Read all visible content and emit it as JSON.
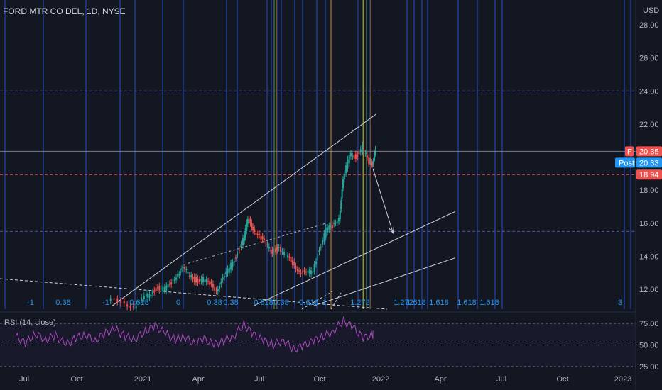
{
  "header": {
    "title": "FORD MTR CO DEL, 1D, NYSE",
    "currency": "USD"
  },
  "rsi": {
    "label": "RSI (14, close)",
    "levels": [
      75,
      50,
      25
    ],
    "level_labels": [
      "75.00",
      "50.00",
      "25.00"
    ]
  },
  "price_tags": {
    "last": {
      "symbol": "F",
      "value": "20.35",
      "color": "#ef5350"
    },
    "post": {
      "label": "Post",
      "value": "20.33",
      "color": "#2196f3"
    },
    "level": {
      "value": "18.94",
      "color": "#ef5350"
    }
  },
  "chart_data": {
    "type": "line",
    "x_axis_labels": [
      "Jul",
      "Oct",
      "2021",
      "Apr",
      "Jul",
      "Oct",
      "2022",
      "Apr",
      "Jul",
      "Oct",
      "2023"
    ],
    "y_axis_labels": [
      "28.00",
      "26.00",
      "24.00",
      "22.00",
      "18.00",
      "16.00",
      "14.00",
      "12.00"
    ],
    "ylim": [
      11,
      29
    ],
    "series": [
      {
        "x": [
          "2020-11-10",
          "2020-12-01",
          "2020-12-20",
          "2021-01-05",
          "2021-01-15",
          "2021-01-25",
          "2021-02-05",
          "2021-02-15",
          "2021-02-25",
          "2021-03-05",
          "2021-03-15",
          "2021-03-25",
          "2021-04-05",
          "2021-04-15",
          "2021-04-25",
          "2021-05-05",
          "2021-05-15",
          "2021-05-25",
          "2021-06-05",
          "2021-06-12",
          "2021-06-20",
          "2021-06-30",
          "2021-07-10",
          "2021-07-20",
          "2021-07-30",
          "2021-08-10",
          "2021-08-20",
          "2021-08-30",
          "2021-09-10",
          "2021-09-20",
          "2021-09-30",
          "2021-10-10",
          "2021-10-20",
          "2021-10-30",
          "2021-11-05",
          "2021-11-15",
          "2021-11-25",
          "2021-12-05",
          "2021-12-15",
          "2021-12-20"
        ],
        "values": [
          11.3,
          10.9,
          11.5,
          11.8,
          12.1,
          12.0,
          12.4,
          13.0,
          13.2,
          12.9,
          12.5,
          12.6,
          12.3,
          12.0,
          12.6,
          13.3,
          14.0,
          15.0,
          16.2,
          15.7,
          15.2,
          14.7,
          14.3,
          14.5,
          14.0,
          13.6,
          13.1,
          12.9,
          13.2,
          14.4,
          15.6,
          15.8,
          16.4,
          18.5,
          20.2,
          20.0,
          20.6,
          19.6,
          19.7,
          20.35
        ]
      }
    ],
    "rsi_series": {
      "x": [
        "2020-06-20",
        "2020-07-05",
        "2020-07-20",
        "2020-08-05",
        "2020-08-20",
        "2020-09-05",
        "2020-09-20",
        "2020-10-05",
        "2020-10-20",
        "2020-11-05",
        "2020-11-20",
        "2020-12-05",
        "2020-12-20",
        "2021-01-05",
        "2021-01-20",
        "2021-02-05",
        "2021-02-20",
        "2021-03-05",
        "2021-03-20",
        "2021-04-05",
        "2021-04-20",
        "2021-05-05",
        "2021-05-20",
        "2021-06-05",
        "2021-06-20",
        "2021-07-05",
        "2021-07-20",
        "2021-08-05",
        "2021-08-20",
        "2021-09-05",
        "2021-09-20",
        "2021-10-05",
        "2021-10-20",
        "2021-11-05",
        "2021-11-20",
        "2021-12-05",
        "2021-12-20"
      ],
      "values": [
        60,
        52,
        63,
        56,
        61,
        50,
        58,
        62,
        55,
        64,
        68,
        60,
        57,
        66,
        72,
        63,
        56,
        60,
        52,
        57,
        50,
        55,
        60,
        74,
        62,
        55,
        50,
        56,
        45,
        49,
        55,
        60,
        66,
        78,
        70,
        58,
        62
      ]
    },
    "trendlines": [
      {
        "x": [
          "2020-11-15",
          "2021-12-25"
        ],
        "y": [
          11,
          22.6
        ],
        "color": "#d1d4dc"
      },
      {
        "x": [
          "2021-06-20",
          "2022-04-25"
        ],
        "y": [
          11,
          16.7
        ],
        "color": "#d1d4dc"
      },
      {
        "x": [
          "2021-09-20",
          "2022-04-25"
        ],
        "y": [
          11,
          13.9
        ],
        "color": "#d1d4dc"
      },
      {
        "x": [
          "2021-03-05",
          "2021-10-10"
        ],
        "y": [
          13.5,
          16.0
        ],
        "color": "#b2b5be"
      }
    ],
    "arrow": {
      "x": [
        "2021-12-20",
        "2022-01-20"
      ],
      "y": [
        19.3,
        15.4
      ],
      "color": "#d1d4dc"
    },
    "fib_time_labels": [
      "-1",
      "0.38",
      "-1",
      "0.618",
      "0",
      "0.38",
      "0.38",
      "0.618",
      "0.38",
      "0.618",
      "1",
      "1.272",
      "1.272",
      "1.618",
      "1.618",
      "1.618",
      "1.618",
      "3"
    ],
    "horizontal_levels": [
      {
        "value": 20.35,
        "color": "#787b86"
      },
      {
        "value": 18.94,
        "color": "#ef5350"
      },
      {
        "value": 24.0,
        "color": "#5b4ea8"
      },
      {
        "value": 15.5,
        "color": "#5b4ea8"
      }
    ],
    "grid": false,
    "legend": "none"
  }
}
